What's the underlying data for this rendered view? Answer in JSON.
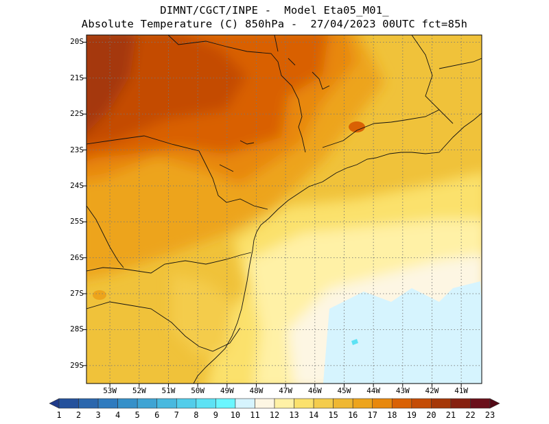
{
  "header": {
    "line1": "DIMNT/CGCT/INPE -  Model Eta05_M01_",
    "line2": "Absolute Temperature (C) 850hPa -  27/04/2023 00UTC fct=85h"
  },
  "map": {
    "lat_labels": [
      "20S",
      "21S",
      "22S",
      "23S",
      "24S",
      "25S",
      "26S",
      "27S",
      "28S",
      "29S"
    ],
    "lon_labels": [
      "53W",
      "52W",
      "51W",
      "50W",
      "49W",
      "48W",
      "47W",
      "46W",
      "45W",
      "44W",
      "43W",
      "42W",
      "41W"
    ],
    "lat_range": [
      -29.5,
      -19.8
    ],
    "lon_range": [
      -53.8,
      -40.3
    ],
    "gridlines": true
  },
  "colorbar": {
    "labels": [
      "1",
      "2",
      "3",
      "4",
      "5",
      "6",
      "7",
      "8",
      "9",
      "10",
      "11",
      "12",
      "13",
      "14",
      "15",
      "16",
      "17",
      "18",
      "19",
      "20",
      "21",
      "22",
      "23"
    ],
    "colors": [
      "#1f3a8a",
      "#24519c",
      "#2a66ad",
      "#2f7bbf",
      "#3590c9",
      "#3fa4d4",
      "#48b9df",
      "#52cdea",
      "#5de2f4",
      "#6af6ff",
      "#d6f4fe",
      "#fdf6e3",
      "#fff1a6",
      "#fbe16c",
      "#f4cc4c",
      "#efb732",
      "#eda41c",
      "#e8880c",
      "#d96104",
      "#c44c05",
      "#a53707",
      "#86200f",
      "#6a0f1a",
      "#520815"
    ]
  }
}
